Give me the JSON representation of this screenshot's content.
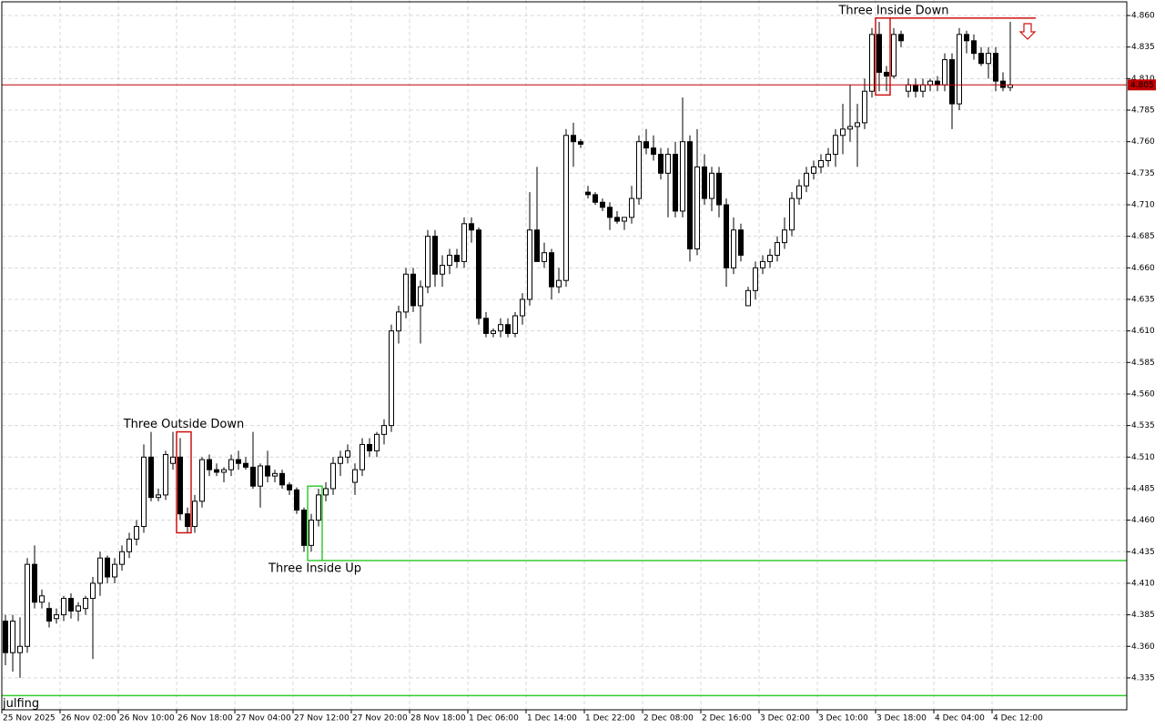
{
  "chart_data": {
    "type": "candlestick",
    "ylim": [
      4.3097,
      4.8723
    ],
    "yticks": [
      4.335,
      {
        "value": 4.36,
        "label": "4.360"
      },
      4.385,
      {
        "value": 4.41,
        "label": "4.410"
      },
      4.435,
      {
        "value": 4.46,
        "label": "4.460"
      },
      4.485,
      {
        "value": 4.51,
        "label": "4.510"
      },
      4.535,
      {
        "value": 4.56,
        "label": "4.560"
      },
      4.585,
      {
        "value": 4.61,
        "label": "4.610"
      },
      4.635,
      {
        "value": 4.66,
        "label": "4.660"
      },
      4.685,
      {
        "value": 4.71,
        "label": "4.710"
      },
      4.735,
      {
        "value": 4.76,
        "label": "4.760"
      },
      4.785,
      {
        "value": 4.81,
        "label": "4.810"
      },
      4.835,
      {
        "value": 4.86,
        "label": "4.860"
      }
    ],
    "grid": true,
    "up_color": "#ffffff",
    "down_color": "#000000",
    "x_labels": [
      "25 Nov 2025",
      "26 Nov 02:00",
      "26 Nov 10:00",
      "26 Nov 18:00",
      "27 Nov 04:00",
      "27 Nov 12:00",
      "27 Nov 20:00",
      "28 Nov 18:00",
      "1 Dec 06:00",
      "1 Dec 14:00",
      "1 Dec 22:00",
      "2 Dec 08:00",
      "2 Dec 16:00",
      "3 Dec 02:00",
      "3 Dec 10:00",
      "3 Dec 18:00",
      "4 Dec 04:00",
      "4 Dec 12:00"
    ],
    "x_label_every": 8,
    "candles": [
      [
        4.38,
        4.385,
        4.345,
        4.355
      ],
      [
        4.355,
        4.385,
        4.34,
        4.38
      ],
      [
        4.355,
        4.383,
        4.335,
        4.36
      ],
      [
        4.36,
        4.43,
        4.355,
        4.425
      ],
      [
        4.425,
        4.44,
        4.39,
        4.395
      ],
      [
        4.395,
        4.405,
        4.39,
        4.4
      ],
      [
        4.39,
        4.395,
        4.375,
        4.38
      ],
      [
        4.382,
        4.39,
        4.378,
        4.385
      ],
      [
        4.385,
        4.4,
        4.38,
        4.398
      ],
      [
        4.398,
        4.402,
        4.382,
        4.388
      ],
      [
        4.388,
        4.395,
        4.38,
        4.392
      ],
      [
        4.39,
        4.4,
        4.385,
        4.398
      ],
      [
        4.398,
        4.415,
        4.35,
        4.41
      ],
      [
        4.41,
        4.435,
        4.4,
        4.43
      ],
      [
        4.43,
        4.432,
        4.41,
        4.415
      ],
      [
        4.415,
        4.43,
        4.41,
        4.425
      ],
      [
        4.425,
        4.44,
        4.42,
        4.435
      ],
      [
        4.435,
        4.45,
        4.43,
        4.445
      ],
      [
        4.445,
        4.46,
        4.44,
        4.455
      ],
      [
        4.455,
        4.52,
        4.45,
        4.51
      ],
      [
        4.51,
        4.53,
        4.475,
        4.478
      ],
      [
        4.478,
        4.485,
        4.475,
        4.48
      ],
      [
        4.48,
        4.515,
        4.476,
        4.512
      ],
      [
        4.505,
        4.53,
        4.5,
        4.51
      ],
      [
        4.51,
        4.525,
        4.46,
        4.465
      ],
      [
        4.465,
        4.47,
        4.45,
        4.455
      ],
      [
        4.455,
        4.48,
        4.45,
        4.475
      ],
      [
        4.475,
        4.51,
        4.47,
        4.508
      ],
      [
        4.508,
        4.512,
        4.495,
        4.5
      ],
      [
        4.5,
        4.505,
        4.495,
        4.498
      ],
      [
        4.498,
        4.502,
        4.49,
        4.5
      ],
      [
        4.5,
        4.512,
        4.495,
        4.508
      ],
      [
        4.508,
        4.515,
        4.5,
        4.505
      ],
      [
        4.505,
        4.51,
        4.5,
        4.502
      ],
      [
        4.502,
        4.53,
        4.485,
        4.487
      ],
      [
        4.487,
        4.505,
        4.47,
        4.503
      ],
      [
        4.503,
        4.515,
        4.49,
        4.495
      ],
      [
        4.495,
        4.5,
        4.49,
        4.497
      ],
      [
        4.497,
        4.5,
        4.485,
        4.488
      ],
      [
        4.488,
        4.49,
        4.48,
        4.484
      ],
      [
        4.484,
        4.486,
        4.465,
        4.468
      ],
      [
        4.468,
        4.47,
        4.435,
        4.44
      ],
      [
        4.44,
        4.465,
        4.435,
        4.46
      ],
      [
        4.46,
        4.485,
        4.455,
        4.48
      ],
      [
        4.48,
        4.49,
        4.475,
        4.485
      ],
      [
        4.485,
        4.51,
        4.48,
        4.505
      ],
      [
        4.505,
        4.515,
        4.495,
        4.51
      ],
      [
        4.51,
        4.52,
        4.505,
        4.515
      ],
      [
        4.49,
        4.505,
        4.48,
        4.5
      ],
      [
        4.5,
        4.525,
        4.495,
        4.52
      ],
      [
        4.52,
        4.525,
        4.51,
        4.515
      ],
      [
        4.515,
        4.53,
        4.51,
        4.528
      ],
      [
        4.528,
        4.54,
        4.52,
        4.535
      ],
      [
        4.535,
        4.615,
        4.53,
        4.61
      ],
      [
        4.61,
        4.63,
        4.6,
        4.625
      ],
      [
        4.625,
        4.66,
        4.62,
        4.655
      ],
      [
        4.655,
        4.66,
        4.625,
        4.63
      ],
      [
        4.63,
        4.65,
        4.6,
        4.645
      ],
      [
        4.645,
        4.69,
        4.64,
        4.685
      ],
      [
        4.685,
        4.69,
        4.645,
        4.655
      ],
      [
        4.655,
        4.67,
        4.645,
        4.662
      ],
      [
        4.662,
        4.675,
        4.655,
        4.67
      ],
      [
        4.67,
        4.675,
        4.66,
        4.665
      ],
      [
        4.665,
        4.7,
        4.66,
        4.695
      ],
      [
        4.695,
        4.7,
        4.68,
        4.69
      ],
      [
        4.69,
        4.692,
        4.615,
        4.62
      ],
      [
        4.62,
        4.625,
        4.605,
        4.608
      ],
      [
        4.608,
        4.612,
        4.605,
        4.61
      ],
      [
        4.61,
        4.62,
        4.605,
        4.615
      ],
      [
        4.615,
        4.62,
        4.605,
        4.608
      ],
      [
        4.608,
        4.625,
        4.605,
        4.622
      ],
      [
        4.622,
        4.64,
        4.615,
        4.635
      ],
      [
        4.635,
        4.72,
        4.63,
        4.69
      ],
      [
        4.69,
        4.74,
        4.665,
        4.665
      ],
      [
        4.665,
        4.68,
        4.66,
        4.672
      ],
      [
        4.672,
        4.675,
        4.635,
        4.645
      ],
      [
        4.645,
        4.66,
        4.64,
        4.65
      ],
      [
        4.65,
        4.77,
        4.645,
        4.765
      ],
      [
        4.765,
        4.775,
        4.74,
        4.76
      ],
      [
        4.76,
        4.762,
        4.755,
        4.758
      ],
      [
        4.72,
        4.725,
        4.715,
        4.718
      ],
      [
        4.718,
        4.72,
        4.71,
        4.712
      ],
      [
        4.712,
        4.715,
        4.705,
        4.708
      ],
      [
        4.708,
        4.712,
        4.69,
        4.7
      ],
      [
        4.7,
        4.705,
        4.695,
        4.697
      ],
      [
        4.697,
        4.7,
        4.69,
        4.7
      ],
      [
        4.7,
        4.725,
        4.695,
        4.715
      ],
      [
        4.715,
        4.765,
        4.71,
        4.76
      ],
      [
        4.76,
        4.77,
        4.75,
        4.755
      ],
      [
        4.755,
        4.765,
        4.745,
        4.75
      ],
      [
        4.75,
        4.755,
        4.73,
        4.735
      ],
      [
        4.735,
        4.755,
        4.7,
        4.75
      ],
      [
        4.75,
        4.76,
        4.7,
        4.705
      ],
      [
        4.705,
        4.795,
        4.7,
        4.76
      ],
      [
        4.76,
        4.765,
        4.665,
        4.675
      ],
      [
        4.675,
        4.77,
        4.67,
        4.74
      ],
      [
        4.74,
        4.75,
        4.71,
        4.715
      ],
      [
        4.715,
        4.74,
        4.705,
        4.735
      ],
      [
        4.735,
        4.74,
        4.7,
        4.71
      ],
      [
        4.71,
        4.715,
        4.645,
        4.66
      ],
      [
        4.66,
        4.7,
        4.655,
        4.69
      ],
      [
        4.69,
        4.695,
        4.665,
        4.67
      ],
      [
        4.63,
        4.645,
        4.63,
        4.642
      ],
      [
        4.642,
        4.665,
        4.635,
        4.66
      ],
      [
        4.66,
        4.67,
        4.655,
        4.665
      ],
      [
        4.665,
        4.675,
        4.66,
        4.67
      ],
      [
        4.67,
        4.685,
        4.665,
        4.68
      ],
      [
        4.68,
        4.7,
        4.675,
        4.69
      ],
      [
        4.69,
        4.72,
        4.685,
        4.715
      ],
      [
        4.715,
        4.73,
        4.71,
        4.725
      ],
      [
        4.725,
        4.74,
        4.72,
        4.735
      ],
      [
        4.735,
        4.745,
        4.73,
        4.74
      ],
      [
        4.74,
        4.75,
        4.735,
        4.745
      ],
      [
        4.745,
        4.755,
        4.74,
        4.75
      ],
      [
        4.75,
        4.77,
        4.74,
        4.765
      ],
      [
        4.765,
        4.79,
        4.75,
        4.77
      ],
      [
        4.77,
        4.805,
        4.76,
        4.772
      ],
      [
        4.772,
        4.79,
        4.74,
        4.775
      ],
      [
        4.775,
        4.81,
        4.77,
        4.8
      ],
      [
        4.8,
        4.85,
        4.795,
        4.845
      ],
      [
        4.845,
        4.855,
        4.8,
        4.815
      ],
      [
        4.815,
        4.82,
        4.8,
        4.812
      ],
      [
        4.812,
        4.85,
        4.81,
        4.845
      ],
      [
        4.845,
        4.848,
        4.835,
        4.84
      ],
      [
        4.8,
        4.81,
        4.795,
        4.805
      ],
      [
        4.805,
        4.81,
        4.795,
        4.8
      ],
      [
        4.8,
        4.81,
        4.795,
        4.805
      ],
      [
        4.805,
        4.81,
        4.8,
        4.808
      ],
      [
        4.808,
        4.812,
        4.8,
        4.805
      ],
      [
        4.805,
        4.83,
        4.8,
        4.825
      ],
      [
        4.825,
        4.83,
        4.77,
        4.79
      ],
      [
        4.79,
        4.85,
        4.785,
        4.845
      ],
      [
        4.845,
        4.848,
        4.83,
        4.84
      ],
      [
        4.84,
        4.845,
        4.825,
        4.83
      ],
      [
        4.83,
        4.835,
        4.82,
        4.822
      ],
      [
        4.822,
        4.835,
        4.81,
        4.83
      ],
      [
        4.83,
        4.835,
        4.8,
        4.808
      ],
      [
        4.808,
        4.815,
        4.8,
        4.803
      ],
      [
        4.803,
        4.855,
        4.8,
        4.805
      ]
    ],
    "current_price": 4.805,
    "current_price_color": "#c00000",
    "patterns": [
      {
        "label": "Three Outside Down",
        "color": "#d01010",
        "start": 24,
        "end": 25,
        "low": 4.45,
        "high": 4.53,
        "label_pos": "above"
      },
      {
        "label": "Three Inside Up",
        "color": "#33cc33",
        "start": 42,
        "end": 43,
        "low": 4.428,
        "high": 4.487,
        "label_pos": "below"
      },
      {
        "label": "Three Inside Down",
        "color": "#d01010",
        "start": 120,
        "end": 121,
        "low": 4.797,
        "high": 4.858,
        "label_pos": "above"
      }
    ],
    "levels": [
      {
        "price": 4.428,
        "color": "#33cc33",
        "from": 43
      },
      {
        "price": 4.858,
        "color": "#d01010",
        "from": 121,
        "to": 141
      },
      {
        "price": 4.321,
        "color": "#33cc33",
        "from": -1,
        "label": "julfing"
      }
    ]
  }
}
